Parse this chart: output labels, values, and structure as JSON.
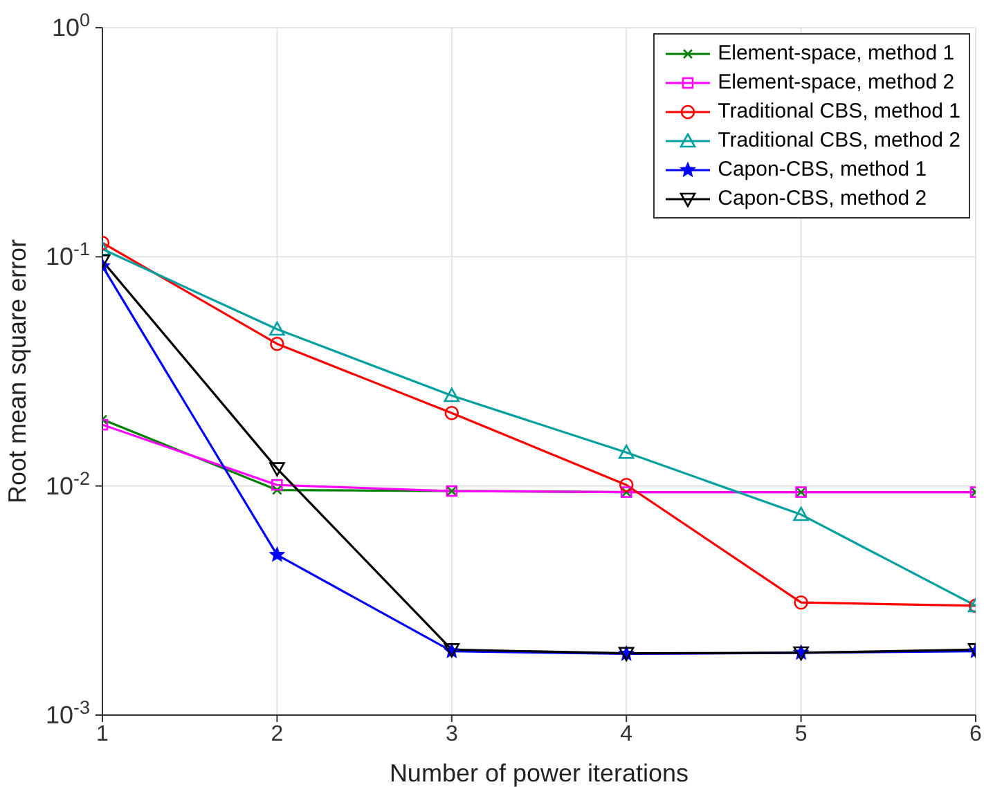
{
  "chart_data": {
    "type": "line",
    "xlabel": "Number of power iterations",
    "ylabel": "Root mean square error",
    "x": [
      1,
      2,
      3,
      4,
      5,
      6
    ],
    "series": [
      {
        "name": "Element-space, method 1",
        "color": "#008000",
        "marker": "cross",
        "values": [
          0.0195,
          0.0096,
          0.0095,
          0.0094,
          0.0094,
          0.0094
        ]
      },
      {
        "name": "Element-space, method 2",
        "color": "#ff00ff",
        "marker": "square",
        "values": [
          0.0185,
          0.0101,
          0.0095,
          0.0094,
          0.0094,
          0.0094
        ]
      },
      {
        "name": "Traditional CBS, method 1",
        "color": "#ff0000",
        "marker": "circle",
        "values": [
          0.115,
          0.0417,
          0.0208,
          0.0101,
          0.0031,
          0.003
        ]
      },
      {
        "name": "Traditional CBS, method 2",
        "color": "#00a0a0",
        "marker": "triangle",
        "values": [
          0.108,
          0.0483,
          0.0248,
          0.014,
          0.0075,
          0.003
        ]
      },
      {
        "name": "Capon-CBS, method 1",
        "color": "#0000ff",
        "marker": "star",
        "values": [
          0.091,
          0.005,
          0.0019,
          0.00185,
          0.00187,
          0.0019
        ]
      },
      {
        "name": "Capon-CBS, method 2",
        "color": "#000000",
        "marker": "triangle-down",
        "values": [
          0.096,
          0.0119,
          0.00193,
          0.00186,
          0.00187,
          0.00193
        ]
      }
    ],
    "xlim": [
      1,
      6
    ],
    "xticks": [
      1,
      2,
      3,
      4,
      5,
      6
    ],
    "ylim": [
      0.001,
      1
    ],
    "yticks": [
      {
        "value": 0.001,
        "label": "10$^{-3}$"
      },
      {
        "value": 0.01,
        "label": "10$^{-2}$"
      },
      {
        "value": 0.1,
        "label": "10$^{-1}$"
      },
      {
        "value": 1,
        "label": "10$^{0}$"
      }
    ],
    "log": "y",
    "grid": true,
    "legend": "top right",
    "line_style": "solid"
  }
}
